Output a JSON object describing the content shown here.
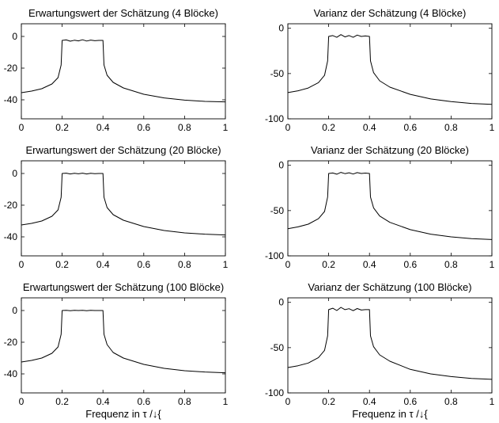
{
  "chart_data": [
    {
      "type": "line",
      "title": "Erwartungswert der Schätzung (4 Blöcke)",
      "xlabel": "",
      "xlim": [
        0,
        1
      ],
      "ylim": [
        -52,
        8
      ],
      "xticks": [
        0,
        0.2,
        0.4,
        0.6,
        0.8,
        1
      ],
      "xtick_labels": [
        "0",
        "0.2",
        "0.4",
        "0.6",
        "0.8",
        "1"
      ],
      "yticks": [
        0,
        -20,
        -40
      ],
      "ytick_labels": [
        "0",
        "-20",
        "-40"
      ],
      "grid": false,
      "x": [
        0,
        0.05,
        0.1,
        0.15,
        0.18,
        0.195,
        0.2,
        0.22,
        0.24,
        0.26,
        0.28,
        0.3,
        0.32,
        0.34,
        0.36,
        0.38,
        0.4,
        0.405,
        0.42,
        0.45,
        0.5,
        0.6,
        0.7,
        0.8,
        0.9,
        1.0
      ],
      "y": [
        -35.5,
        -34.5,
        -33,
        -30,
        -26,
        -18,
        -2.5,
        -2.2,
        -3,
        -2.4,
        -2.8,
        -2.1,
        -2.9,
        -2.3,
        -2.7,
        -2.5,
        -2.5,
        -18,
        -24.5,
        -29,
        -32.5,
        -36.5,
        -38.8,
        -40.2,
        -41,
        -41.3
      ]
    },
    {
      "type": "line",
      "title": "Varianz der Schätzung (4 Blöcke)",
      "xlabel": "",
      "xlim": [
        0,
        1
      ],
      "ylim": [
        -100,
        5
      ],
      "xticks": [
        0,
        0.2,
        0.4,
        0.6,
        0.8,
        1
      ],
      "xtick_labels": [
        "0",
        "0.2",
        "0.4",
        "0.6",
        "0.8",
        "1"
      ],
      "yticks": [
        0,
        -50,
        -100
      ],
      "ytick_labels": [
        "0",
        "-50",
        "-100"
      ],
      "grid": false,
      "x": [
        0,
        0.05,
        0.1,
        0.15,
        0.18,
        0.195,
        0.2,
        0.22,
        0.24,
        0.26,
        0.28,
        0.3,
        0.32,
        0.34,
        0.36,
        0.38,
        0.4,
        0.405,
        0.42,
        0.45,
        0.5,
        0.6,
        0.7,
        0.8,
        0.9,
        1.0
      ],
      "y": [
        -71,
        -69,
        -66,
        -60,
        -52,
        -36,
        -9,
        -8,
        -10,
        -7,
        -9.5,
        -8,
        -10,
        -7.5,
        -9,
        -8.5,
        -9,
        -36,
        -49,
        -58,
        -65,
        -73,
        -78,
        -81,
        -83,
        -84
      ]
    },
    {
      "type": "line",
      "title": "Erwartungswert der Schätzung (20 Blöcke)",
      "xlabel": "",
      "xlim": [
        0,
        1
      ],
      "ylim": [
        -52,
        8
      ],
      "xticks": [
        0,
        0.2,
        0.4,
        0.6,
        0.8,
        1
      ],
      "xtick_labels": [
        "0",
        "0.2",
        "0.4",
        "0.6",
        "0.8",
        "1"
      ],
      "yticks": [
        0,
        -20,
        -40
      ],
      "ytick_labels": [
        "0",
        "-20",
        "-40"
      ],
      "grid": false,
      "x": [
        0,
        0.05,
        0.1,
        0.15,
        0.18,
        0.195,
        0.2,
        0.22,
        0.24,
        0.26,
        0.28,
        0.3,
        0.32,
        0.34,
        0.36,
        0.38,
        0.4,
        0.405,
        0.42,
        0.45,
        0.5,
        0.6,
        0.7,
        0.8,
        0.9,
        1.0
      ],
      "y": [
        -32.5,
        -31.5,
        -30,
        -27,
        -23,
        -15,
        0,
        0.2,
        -0.3,
        0.1,
        -0.2,
        0.2,
        -0.3,
        0.1,
        -0.1,
        0,
        0,
        -15,
        -21.5,
        -26,
        -29.5,
        -33.5,
        -36,
        -37.5,
        -38.3,
        -38.8
      ]
    },
    {
      "type": "line",
      "title": "Varianz der Schätzung (20 Blöcke)",
      "xlabel": "",
      "xlim": [
        0,
        1
      ],
      "ylim": [
        -100,
        5
      ],
      "xticks": [
        0,
        0.2,
        0.4,
        0.6,
        0.8,
        1
      ],
      "xtick_labels": [
        "0",
        "0.2",
        "0.4",
        "0.6",
        "0.8",
        "1"
      ],
      "yticks": [
        0,
        -50,
        -100
      ],
      "ytick_labels": [
        "0",
        "-50",
        "-100"
      ],
      "grid": false,
      "x": [
        0,
        0.05,
        0.1,
        0.15,
        0.18,
        0.195,
        0.2,
        0.22,
        0.24,
        0.26,
        0.28,
        0.3,
        0.32,
        0.34,
        0.36,
        0.38,
        0.4,
        0.405,
        0.42,
        0.45,
        0.5,
        0.6,
        0.7,
        0.8,
        0.9,
        1.0
      ],
      "y": [
        -70,
        -68,
        -65,
        -59,
        -51,
        -35,
        -9,
        -8.5,
        -9.8,
        -7.8,
        -9.2,
        -8.2,
        -9.6,
        -8,
        -9,
        -8.6,
        -9,
        -35,
        -47,
        -56,
        -63,
        -71,
        -76,
        -79,
        -81,
        -82
      ]
    },
    {
      "type": "line",
      "title": "Erwartungswert der Schätzung (100 Blöcke)",
      "xlabel": "Frequenz in τ /↓{",
      "xlim": [
        0,
        1
      ],
      "ylim": [
        -52,
        8
      ],
      "xticks": [
        0,
        0.2,
        0.4,
        0.6,
        0.8,
        1
      ],
      "xtick_labels": [
        "0",
        "0.2",
        "0.4",
        "0.6",
        "0.8",
        "1"
      ],
      "yticks": [
        0,
        -20,
        -40
      ],
      "ytick_labels": [
        "0",
        "-20",
        "-40"
      ],
      "grid": false,
      "x": [
        0,
        0.05,
        0.1,
        0.15,
        0.18,
        0.195,
        0.2,
        0.22,
        0.24,
        0.26,
        0.28,
        0.3,
        0.32,
        0.34,
        0.36,
        0.38,
        0.4,
        0.405,
        0.42,
        0.45,
        0.5,
        0.6,
        0.7,
        0.8,
        0.9,
        1.0
      ],
      "y": [
        -32.5,
        -31.5,
        -30,
        -27,
        -23,
        -15,
        0,
        0.1,
        -0.1,
        0.1,
        0,
        0.1,
        -0.1,
        0.1,
        0,
        0,
        0,
        -15,
        -21.5,
        -26.5,
        -30,
        -34,
        -36.5,
        -38,
        -38.8,
        -39.3
      ]
    },
    {
      "type": "line",
      "title": "Varianz der Schätzung (100 Blöcke)",
      "xlabel": "Frequenz in τ /↓{",
      "xlim": [
        0,
        1
      ],
      "ylim": [
        -100,
        5
      ],
      "xticks": [
        0,
        0.2,
        0.4,
        0.6,
        0.8,
        1
      ],
      "xtick_labels": [
        "0",
        "0.2",
        "0.4",
        "0.6",
        "0.8",
        "1"
      ],
      "yticks": [
        0,
        -50,
        -100
      ],
      "ytick_labels": [
        "0",
        "-50",
        "-100"
      ],
      "grid": false,
      "x": [
        0,
        0.05,
        0.1,
        0.15,
        0.18,
        0.195,
        0.2,
        0.22,
        0.24,
        0.26,
        0.28,
        0.3,
        0.32,
        0.34,
        0.36,
        0.38,
        0.4,
        0.405,
        0.42,
        0.45,
        0.5,
        0.6,
        0.7,
        0.8,
        0.9,
        1.0
      ],
      "y": [
        -72,
        -70,
        -67,
        -61,
        -53,
        -37,
        -8,
        -6.5,
        -9,
        -5.5,
        -8,
        -7,
        -9.2,
        -6.8,
        -8.5,
        -8,
        -8,
        -37,
        -49,
        -58,
        -65,
        -74,
        -79,
        -82,
        -84,
        -85
      ]
    }
  ]
}
